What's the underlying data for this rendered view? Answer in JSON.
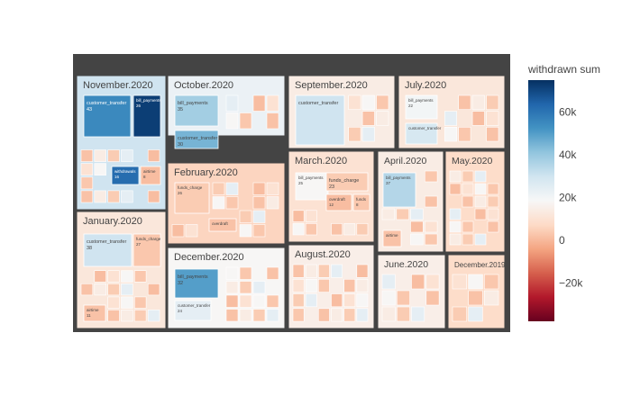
{
  "chart_data": {
    "type": "treemap",
    "colorscale": "RdBu",
    "colorbar": {
      "title": "withdrawn sum",
      "range": [
        -38,
        75
      ],
      "ticks": [
        {
          "value": -20,
          "label": "−20k"
        },
        {
          "value": 0,
          "label": "0"
        },
        {
          "value": 20,
          "label": "20k"
        },
        {
          "value": 40,
          "label": "40k"
        },
        {
          "value": 60,
          "label": "60k"
        }
      ]
    },
    "months": [
      {
        "name": "November.2020",
        "color_value": 30,
        "children": [
          {
            "name": "customer_transfer",
            "count": "43",
            "color_value": 55
          },
          {
            "name": "bill_payments",
            "count": "26",
            "color_value": 72
          },
          {
            "name": "withdrawals",
            "count": "16",
            "color_value": 62
          },
          {
            "name": "airtime",
            "count": "8",
            "color_value": 1
          }
        ]
      },
      {
        "name": "October.2020",
        "color_value": 22,
        "children": [
          {
            "name": "bill_payments",
            "count": "35",
            "color_value": 38
          },
          {
            "name": "customer_transfer",
            "count": "30",
            "color_value": 45
          }
        ]
      },
      {
        "name": "September.2020",
        "color_value": 14,
        "children": [
          {
            "name": "customer_transfer",
            "count": "",
            "color_value": 30
          }
        ]
      },
      {
        "name": "July.2020",
        "color_value": 12,
        "children": [
          {
            "name": "bill_payments",
            "count": "22",
            "color_value": 20
          },
          {
            "name": "customer_transfer",
            "count": "",
            "color_value": 28
          }
        ]
      },
      {
        "name": "February.2020",
        "color_value": 6,
        "children": [
          {
            "name": "funds_charge",
            "count": "26",
            "color_value": 4
          },
          {
            "name": "overdraft",
            "count": "",
            "color_value": 2
          }
        ]
      },
      {
        "name": "March.2020",
        "color_value": 10,
        "children": [
          {
            "name": "bill_payments",
            "count": "25",
            "color_value": 18
          },
          {
            "name": "funds_charge",
            "count": "23",
            "color_value": 4
          },
          {
            "name": "overdraft",
            "count": "12",
            "color_value": 1
          },
          {
            "name": "funds",
            "count": "8",
            "color_value": 3
          }
        ]
      },
      {
        "name": "April.2020",
        "color_value": 14,
        "children": [
          {
            "name": "bill_payments",
            "count": "37",
            "color_value": 35
          },
          {
            "name": "airtime",
            "count": "",
            "color_value": 2
          }
        ]
      },
      {
        "name": "May.2020",
        "color_value": 8,
        "children": []
      },
      {
        "name": "January.2020",
        "color_value": 12,
        "children": [
          {
            "name": "customer_transfer",
            "count": "38",
            "color_value": 30
          },
          {
            "name": "funds_charge",
            "count": "27",
            "color_value": 3
          },
          {
            "name": "airtime",
            "count": "11",
            "color_value": 2
          }
        ]
      },
      {
        "name": "December.2020",
        "color_value": 18,
        "children": [
          {
            "name": "bill_payments",
            "count": "32",
            "color_value": 50
          },
          {
            "name": "customer_transfer",
            "count": "24",
            "color_value": 24
          }
        ]
      },
      {
        "name": "August.2020",
        "color_value": 15,
        "children": []
      },
      {
        "name": "June.2020",
        "color_value": 15,
        "children": []
      },
      {
        "name": "December.2019",
        "color_value": 8,
        "children": []
      }
    ]
  }
}
